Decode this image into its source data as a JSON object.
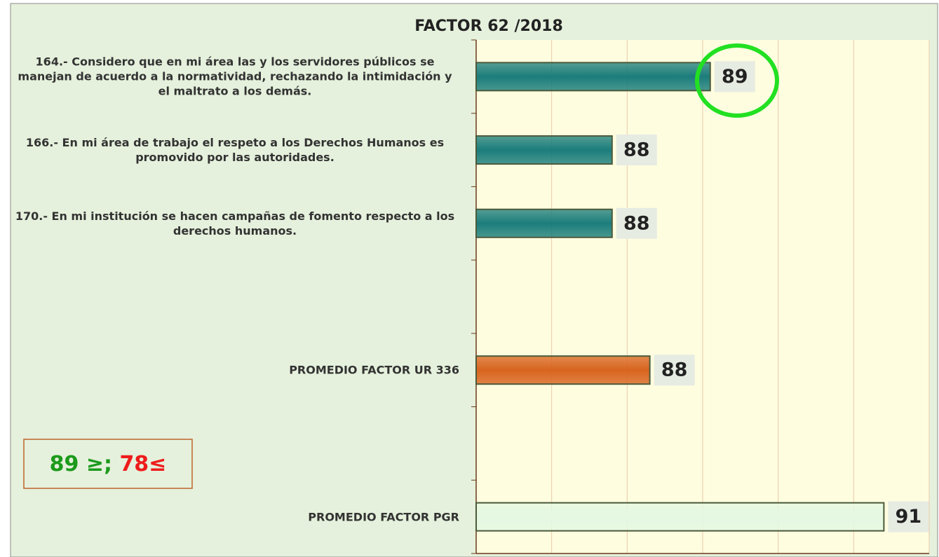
{
  "chart_data": {
    "type": "hbar",
    "title": "FACTOR 62 /2018",
    "categories": [
      "164.- Considero que en mi área las y los servidores públicos se manejan de acuerdo a la normatividad, rechazando la intimidación y el maltrato a los demás.",
      "166.- En mi área de trabajo el respeto a los Derechos Humanos es promovido por las autoridades.",
      "170.- En mi institución se hacen campañas de fomento respecto a los derechos humanos.",
      null,
      "PROMEDIO FACTOR UR 336",
      null,
      "PROMEDIO FACTOR PGR"
    ],
    "values": [
      89.1,
      87.8,
      87.8,
      null,
      88.3,
      null,
      91.4
    ],
    "value_labels": [
      "89",
      "88",
      "88",
      null,
      "88",
      null,
      "91"
    ],
    "colors": [
      "#1b7d7b",
      "#1b7d7b",
      "#1b7d7b",
      null,
      "#d8641e",
      null,
      "#e4f8e2"
    ],
    "xlim": [
      86,
      92
    ],
    "xticks": [
      86,
      87,
      88,
      89,
      90,
      91,
      92
    ],
    "grid": true,
    "threshold_box": [
      "89 ≥;",
      "78≤"
    ]
  }
}
